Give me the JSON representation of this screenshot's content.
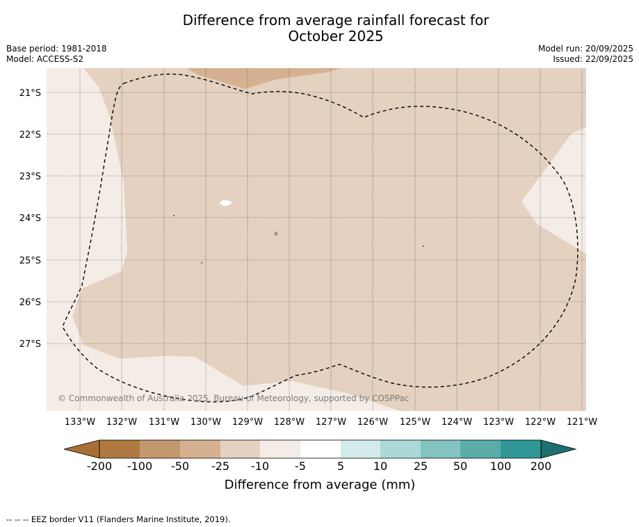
{
  "title_line1": "Difference from average rainfall forecast for",
  "title_line2": "October 2025",
  "base_period": "Base period: 1981-2018",
  "model": "Model: ACCESS-S2",
  "model_run": "Model run: 20/09/2025",
  "issued": "Issued: 22/09/2025",
  "copyright": "© Commonwealth of Australia 2025, Bureau of Meteorology, supported by COSPPac",
  "footnote": "--  --  -- EEZ border V11 (Flanders Marine Institute, 2019).",
  "map": {
    "lat_labels": [
      "21°S",
      "22°S",
      "23°S",
      "24°S",
      "25°S",
      "26°S",
      "27°S"
    ],
    "lon_labels": [
      "133°W",
      "132°W",
      "131°W",
      "130°W",
      "129°W",
      "128°W",
      "127°W",
      "126°W",
      "125°W",
      "124°W",
      "123°W",
      "122°W",
      "121°W"
    ],
    "region_levels": {
      "background": "-10 to -5",
      "main": "-25 to -10",
      "north_patch": "-50 to -25",
      "small_spot": "-5 to 5"
    }
  },
  "colorbar": {
    "title": "Difference from average (mm)",
    "ticks": [
      "-200",
      "-100",
      "-50",
      "-25",
      "-10",
      "-5",
      "5",
      "10",
      "25",
      "50",
      "100",
      "200"
    ],
    "colors": [
      "#a76f35",
      "#af7941",
      "#c4986e",
      "#d5b191",
      "#e4d1c0",
      "#f4ece6",
      "#ffffff",
      "#d3ebea",
      "#acd9d7",
      "#83c3c1",
      "#5aacab",
      "#2f9896",
      "#1f6e70"
    ]
  }
}
